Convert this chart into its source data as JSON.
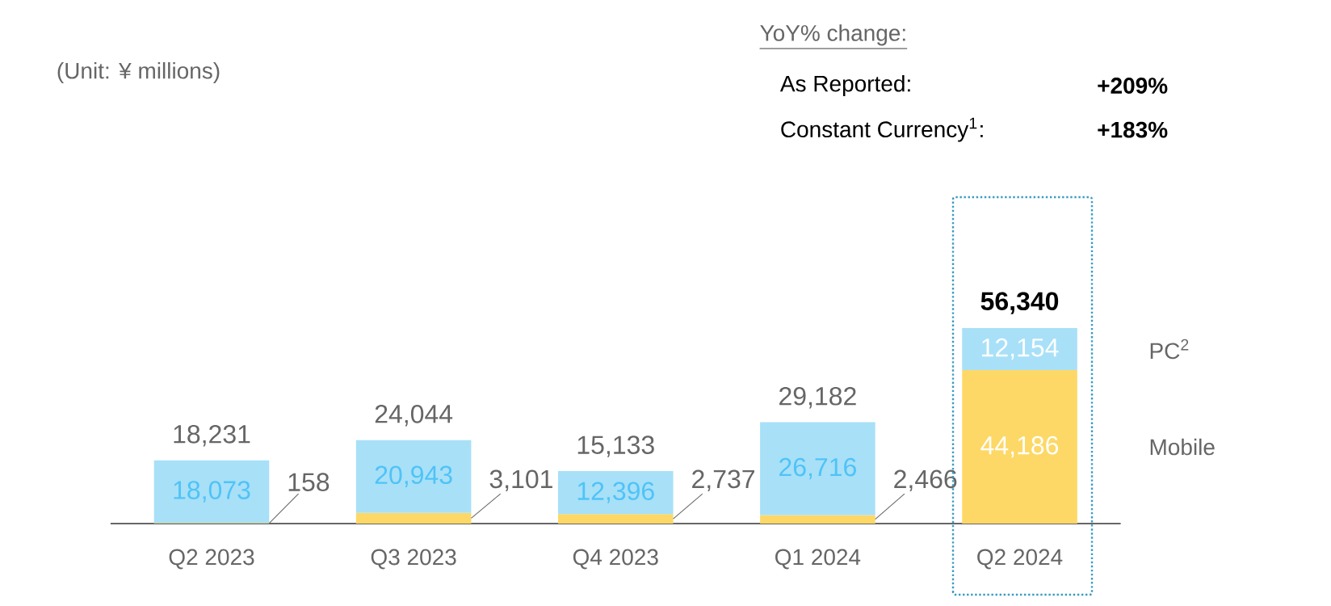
{
  "chart_data": {
    "type": "bar",
    "stacked": true,
    "legend": "right",
    "categories": [
      "Q2 2023",
      "Q3 2023",
      "Q4 2023",
      "Q1 2024",
      "Q2 2024"
    ],
    "series": [
      {
        "name": "Mobile",
        "color": "#fdd866",
        "values": [
          158,
          3101,
          2737,
          2466,
          44186
        ],
        "value_labels": [
          "158",
          "3,101",
          "2,737",
          "2,466",
          "44,186"
        ]
      },
      {
        "name": "PC$^{2}$",
        "color": "#a8e0f8",
        "values": [
          18073,
          20943,
          12396,
          26716,
          12154
        ],
        "value_labels": [
          "18,073",
          "20,943",
          "12,396",
          "26,716",
          "12,154"
        ]
      }
    ],
    "totals": [
      "18,231",
      "24,044",
      "15,133",
      "29,182",
      "56,340"
    ],
    "annotations": [
      "(Unit: ¥ millions)",
      "YoY% change:",
      "As Reported:",
      "+209%",
      "Constant Currency$^{1}$:",
      "+183%"
    ]
  }
}
